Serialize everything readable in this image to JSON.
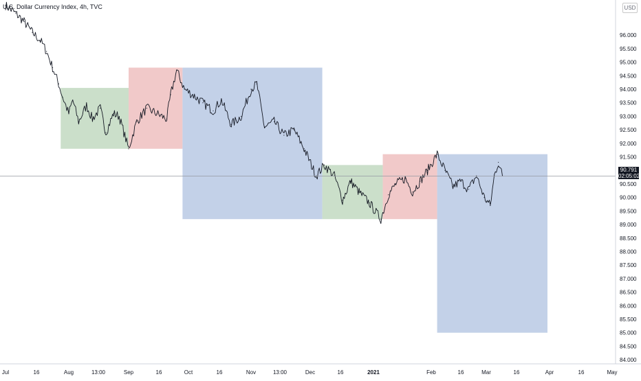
{
  "header": {
    "symbol_label": "U.S. Dollar Currency Index, 4h, TVC"
  },
  "currency_badge": "USD",
  "price_label": {
    "price": "90.791",
    "countdown": "02:05:02"
  },
  "colors": {
    "green_box": "#c5dcc4",
    "red_box": "#f0c3c3",
    "blue_box": "#bccce6",
    "price_line": "#131722",
    "axis_text": "#131722",
    "crosshair_line": "#9598a1"
  },
  "chart_data": {
    "type": "line",
    "title": "",
    "xlabel": "",
    "ylabel": "",
    "ylim": [
      83.85,
      97.3
    ],
    "y_ticks": [
      "96.000",
      "95.500",
      "95.000",
      "94.500",
      "94.000",
      "93.500",
      "93.000",
      "92.500",
      "92.000",
      "91.500",
      "91.000",
      "90.500",
      "90.000",
      "89.500",
      "89.000",
      "88.500",
      "88.000",
      "87.500",
      "87.000",
      "86.500",
      "86.000",
      "85.500",
      "85.000",
      "84.500",
      "84.000"
    ],
    "x_ticks": [
      "Jul",
      "16",
      "Aug",
      "13:00",
      "Sep",
      "16",
      "Oct",
      "16",
      "Nov",
      "13:00",
      "Dec",
      "16",
      "2021",
      "Feb",
      "16",
      "Mar",
      "16",
      "Apr",
      "16",
      "May"
    ],
    "x_tick_dates": [
      "2020-07-01",
      "2020-07-16",
      "2020-08-01",
      "2020-08-16",
      "2020-09-01",
      "2020-09-16",
      "2020-10-01",
      "2020-10-16",
      "2020-11-01",
      "2020-11-16",
      "2020-12-01",
      "2020-12-16",
      "2021-01-01",
      "2021-02-01",
      "2021-02-16",
      "2021-03-01",
      "2021-03-16",
      "2021-04-01",
      "2021-04-16",
      "2021-05-01"
    ],
    "current_price": 90.791,
    "series": [
      {
        "values": [
          {
            "x": "2020-07-01",
            "y": 97.1
          },
          {
            "x": "2020-07-06",
            "y": 96.8
          },
          {
            "x": "2020-07-10",
            "y": 96.5
          },
          {
            "x": "2020-07-14",
            "y": 96.1
          },
          {
            "x": "2020-07-18",
            "y": 95.8
          },
          {
            "x": "2020-07-21",
            "y": 95.4
          },
          {
            "x": "2020-07-24",
            "y": 94.8
          },
          {
            "x": "2020-07-27",
            "y": 94.2
          },
          {
            "x": "2020-07-29",
            "y": 93.7
          },
          {
            "x": "2020-08-01",
            "y": 93.1
          },
          {
            "x": "2020-08-03",
            "y": 93.6
          },
          {
            "x": "2020-08-06",
            "y": 92.8
          },
          {
            "x": "2020-08-10",
            "y": 93.4
          },
          {
            "x": "2020-08-13",
            "y": 92.9
          },
          {
            "x": "2020-08-17",
            "y": 93.3
          },
          {
            "x": "2020-08-20",
            "y": 92.4
          },
          {
            "x": "2020-08-24",
            "y": 93.1
          },
          {
            "x": "2020-08-27",
            "y": 93.0
          },
          {
            "x": "2020-09-01",
            "y": 91.8
          },
          {
            "x": "2020-09-05",
            "y": 92.8
          },
          {
            "x": "2020-09-10",
            "y": 93.3
          },
          {
            "x": "2020-09-15",
            "y": 93.1
          },
          {
            "x": "2020-09-20",
            "y": 92.9
          },
          {
            "x": "2020-09-22",
            "y": 93.8
          },
          {
            "x": "2020-09-25",
            "y": 94.7
          },
          {
            "x": "2020-09-29",
            "y": 94.0
          },
          {
            "x": "2020-10-03",
            "y": 93.8
          },
          {
            "x": "2020-10-08",
            "y": 93.5
          },
          {
            "x": "2020-10-13",
            "y": 93.2
          },
          {
            "x": "2020-10-17",
            "y": 93.6
          },
          {
            "x": "2020-10-22",
            "y": 92.7
          },
          {
            "x": "2020-10-27",
            "y": 93.0
          },
          {
            "x": "2020-11-01",
            "y": 94.0
          },
          {
            "x": "2020-11-04",
            "y": 94.2
          },
          {
            "x": "2020-11-08",
            "y": 92.6
          },
          {
            "x": "2020-11-13",
            "y": 92.8
          },
          {
            "x": "2020-11-18",
            "y": 92.3
          },
          {
            "x": "2020-11-23",
            "y": 92.5
          },
          {
            "x": "2020-11-28",
            "y": 91.8
          },
          {
            "x": "2020-12-04",
            "y": 90.8
          },
          {
            "x": "2020-12-08",
            "y": 91.2
          },
          {
            "x": "2020-12-13",
            "y": 90.8
          },
          {
            "x": "2020-12-17",
            "y": 89.9
          },
          {
            "x": "2020-12-21",
            "y": 90.6
          },
          {
            "x": "2020-12-25",
            "y": 90.2
          },
          {
            "x": "2020-12-30",
            "y": 89.8
          },
          {
            "x": "2021-01-05",
            "y": 89.2
          },
          {
            "x": "2021-01-09",
            "y": 90.1
          },
          {
            "x": "2021-01-13",
            "y": 90.5
          },
          {
            "x": "2021-01-18",
            "y": 90.7
          },
          {
            "x": "2021-01-22",
            "y": 90.2
          },
          {
            "x": "2021-01-26",
            "y": 90.6
          },
          {
            "x": "2021-01-30",
            "y": 91.0
          },
          {
            "x": "2021-02-04",
            "y": 91.6
          },
          {
            "x": "2021-02-08",
            "y": 91.0
          },
          {
            "x": "2021-02-12",
            "y": 90.4
          },
          {
            "x": "2021-02-16",
            "y": 90.6
          },
          {
            "x": "2021-02-20",
            "y": 90.3
          },
          {
            "x": "2021-02-24",
            "y": 90.8
          },
          {
            "x": "2021-02-28",
            "y": 90.0
          },
          {
            "x": "2021-03-03",
            "y": 89.7
          },
          {
            "x": "2021-03-05",
            "y": 90.8
          },
          {
            "x": "2021-03-07",
            "y": 91.3
          },
          {
            "x": "2021-03-09",
            "y": 90.8
          }
        ]
      }
    ],
    "boxes": [
      {
        "color": "green",
        "x0": "2020-07-28",
        "x1": "2020-09-01",
        "y0": 91.8,
        "y1": 94.05
      },
      {
        "color": "red",
        "x0": "2020-09-01",
        "x1": "2020-09-28",
        "y0": 91.8,
        "y1": 94.8
      },
      {
        "color": "blue",
        "x0": "2020-09-28",
        "x1": "2020-12-07",
        "y0": 89.2,
        "y1": 94.8
      },
      {
        "color": "green",
        "x0": "2020-12-07",
        "x1": "2021-01-06",
        "y0": 89.2,
        "y1": 91.2
      },
      {
        "color": "red",
        "x0": "2021-01-06",
        "x1": "2021-02-04",
        "y0": 89.2,
        "y1": 91.6
      },
      {
        "color": "blue",
        "x0": "2021-02-04",
        "x1": "2021-03-31",
        "y0": 85.0,
        "y1": 91.6
      }
    ]
  }
}
